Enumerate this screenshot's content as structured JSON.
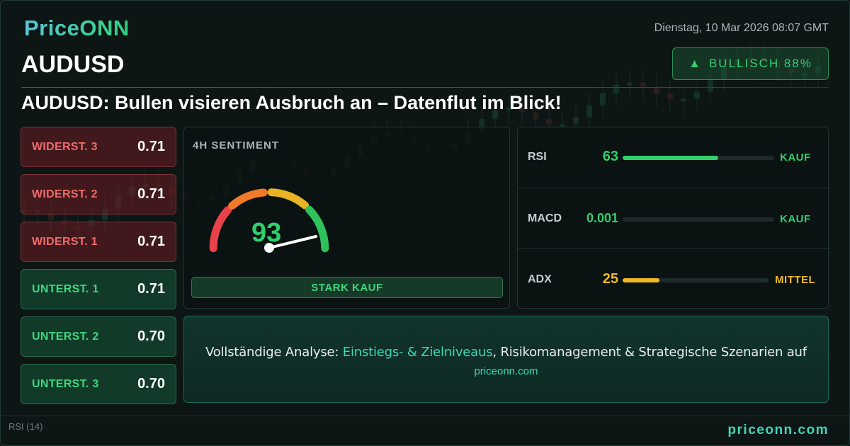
{
  "brand": {
    "logo": "PriceONN",
    "footer_site": "priceonn.com"
  },
  "header": {
    "datetime": "Dienstag, 10 Mar 2026 08:07 GMT",
    "symbol": "AUDUSD",
    "badge": {
      "arrow": "▲",
      "label": "BULLISCH 88%"
    },
    "headline": "AUDUSD: Bullen visieren Ausbruch an – Datenflut im Blick!"
  },
  "levels": [
    {
      "label": "WIDERST. 3",
      "value": "0.71",
      "kind": "resistance"
    },
    {
      "label": "WIDERST. 2",
      "value": "0.71",
      "kind": "resistance"
    },
    {
      "label": "WIDERST. 1",
      "value": "0.71",
      "kind": "resistance"
    },
    {
      "label": "UNTERST. 1",
      "value": "0.71",
      "kind": "support"
    },
    {
      "label": "UNTERST. 2",
      "value": "0.70",
      "kind": "support"
    },
    {
      "label": "UNTERST. 3",
      "value": "0.70",
      "kind": "support"
    }
  ],
  "sentiment": {
    "title": "4H SENTIMENT",
    "value": "93",
    "value_num": 93,
    "signal": "STARK KAUF"
  },
  "indicators": [
    {
      "name": "RSI",
      "value": "63",
      "level": 0.63,
      "signal": "KAUF",
      "color": "#2fcf6a"
    },
    {
      "name": "MACD",
      "value": "0.001",
      "level": 0.0,
      "signal": "KAUF",
      "color": "#2fcf6a"
    },
    {
      "name": "ADX",
      "value": "25",
      "level": 0.25,
      "signal": "MITTEL",
      "color": "#f0b923"
    }
  ],
  "cta": {
    "prefix": "Vollständige Analyse: ",
    "highlight": "Einstiegs- & Zielniveaus",
    "suffix": ", Risikomanagement & Strategische Szenarien auf",
    "site": "priceonn.com"
  },
  "background_chart": {
    "rsi_label": "RSI (14)"
  },
  "colors": {
    "accent": "#3fd7b8",
    "bullish": "#35cf72",
    "resistance": "#ef6b6b",
    "neutral": "#f0b923"
  }
}
